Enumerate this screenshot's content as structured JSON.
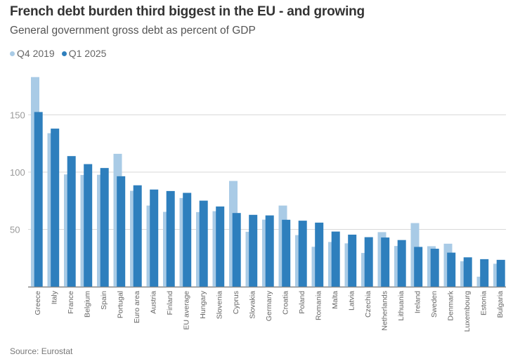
{
  "chart_data": {
    "type": "bar",
    "title": "French debt burden third biggest in the EU - and growing",
    "subtitle": "General government gross debt as percent of GDP",
    "source": "Source: Eurostat",
    "xlabel": "",
    "ylabel": "",
    "ylim": [
      0,
      185
    ],
    "yticks": [
      50,
      100,
      150
    ],
    "grid": true,
    "legend_position": "top-left",
    "categories": [
      "Greece",
      "Italy",
      "France",
      "Belgium",
      "Spain",
      "Portugal",
      "Euro area",
      "Austria",
      "Finland",
      "EU average",
      "Hungary",
      "Slovenia",
      "Cyprus",
      "Slovakia",
      "Germany",
      "Croatia",
      "Poland",
      "Romania",
      "Malta",
      "Latvia",
      "Czechia",
      "Netherlands",
      "Lithuania",
      "Ireland",
      "Sweden",
      "Denmark",
      "Luxembourg",
      "Estonia",
      "Bulgaria"
    ],
    "series": [
      {
        "name": "Q4 2019",
        "color": "#a9cbe6",
        "values": [
          183,
          134,
          98,
          97.5,
          97.7,
          116,
          83.7,
          70.8,
          65.3,
          77.4,
          65.1,
          65.9,
          92.3,
          47.9,
          58.5,
          70.8,
          45.0,
          34.8,
          39.0,
          37.8,
          29.4,
          47.6,
          35.5,
          55.5,
          35.3,
          37.5,
          22.2,
          8.7,
          20.0
        ]
      },
      {
        "name": "Q1 2025",
        "color": "#2e7fbd",
        "values": [
          152.5,
          138,
          114,
          107,
          103.6,
          96.4,
          88.5,
          84.8,
          83.5,
          81.9,
          75.1,
          70.0,
          64.3,
          62.7,
          62.2,
          58.4,
          57.6,
          55.9,
          48.1,
          45.4,
          43.2,
          42.9,
          40.7,
          34.7,
          33.1,
          29.7,
          25.6,
          24.0,
          23.4
        ]
      }
    ]
  }
}
